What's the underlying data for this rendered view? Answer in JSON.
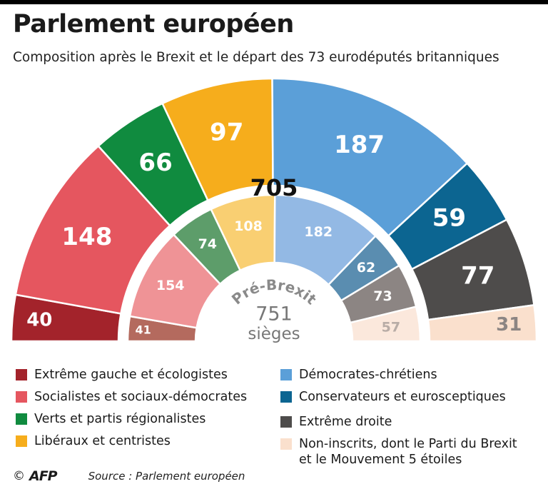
{
  "header": {
    "title": "Parlement européen",
    "subtitle": "Composition après le Brexit et le départ des 73 eurodéputés britanniques"
  },
  "chart_data": {
    "type": "hemicycle",
    "center_label": {
      "post_total": "705",
      "pre_label": "Pré-Brexit",
      "pre_total": "751",
      "pre_unit": "sièges"
    },
    "groups": [
      {
        "name": "Extrême gauche et écologistes",
        "post": 40,
        "pre": 41,
        "color": "#a3232b",
        "pre_color": "#b46a5e"
      },
      {
        "name": "Socialistes et sociaux-démocrates",
        "post": 148,
        "pre": 154,
        "color": "#e5565f",
        "pre_color": "#ef9396"
      },
      {
        "name": "Verts et partis régionalistes",
        "post": 66,
        "pre": 74,
        "color": "#108b3f",
        "pre_color": "#5d9d6a"
      },
      {
        "name": "Libéraux et centristes",
        "post": 97,
        "pre": 108,
        "color": "#f6ad1c",
        "pre_color": "#f9cf72"
      },
      {
        "name": "Démocrates-chrétiens",
        "post": 187,
        "pre": 182,
        "color": "#5b9fd8",
        "pre_color": "#93b9e4"
      },
      {
        "name": "Conservateurs et eurosceptiques",
        "post": 59,
        "pre": 62,
        "color": "#0c6591",
        "pre_color": "#5a8db0"
      },
      {
        "name": "Extrême droite",
        "post": 77,
        "pre": 73,
        "color": "#4e4c4b",
        "pre_color": "#8c8583"
      },
      {
        "name": "Non-inscrits, dont le Parti du Brexit et le Mouvement 5 étoiles",
        "post": 31,
        "pre": 57,
        "color": "#fae0cd",
        "pre_color": "#fbe8dc"
      }
    ]
  },
  "legend": {
    "items": [
      {
        "label": "Extrême gauche et écologistes",
        "color": "#a3232b"
      },
      {
        "label": "Socialistes et sociaux-démocrates",
        "color": "#e5565f"
      },
      {
        "label": "Verts et partis régionalistes",
        "color": "#108b3f"
      },
      {
        "label": "Libéraux et centristes",
        "color": "#f6ad1c"
      },
      {
        "label": "Démocrates-chrétiens",
        "color": "#5b9fd8"
      },
      {
        "label": "Conservateurs et eurosceptiques",
        "color": "#0c6591"
      },
      {
        "label": "Extrême droite",
        "color": "#4e4c4b"
      },
      {
        "label": "Non-inscrits, dont le Parti du Brexit",
        "label_line2": "et le Mouvement 5 étoiles",
        "color": "#fae0cd"
      }
    ]
  },
  "footer": {
    "copyright": "©",
    "agency": "AFP",
    "source": "Source : Parlement européen"
  }
}
